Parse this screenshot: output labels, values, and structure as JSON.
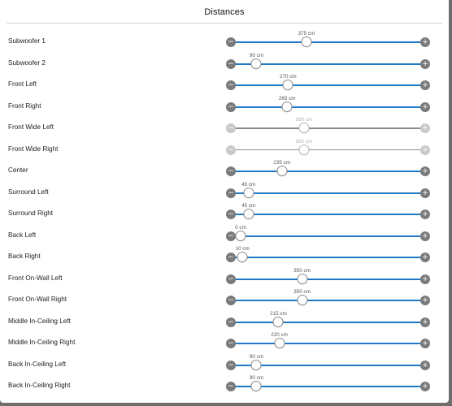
{
  "dialog": {
    "title": "Distances"
  },
  "slider": {
    "min_cm": 0,
    "max_cm": 1000,
    "minus_icon": "minus-icon",
    "plus_icon": "plus-icon",
    "accent_color": "#1f78c8"
  },
  "speakers": [
    {
      "label": "Subwoofer 1",
      "value_cm": 375,
      "value_text": "375 cm",
      "enabled": true
    },
    {
      "label": "Subwoofer 2",
      "value_cm": 90,
      "value_text": "90 cm",
      "enabled": true
    },
    {
      "label": "Front Left",
      "value_cm": 270,
      "value_text": "270 cm",
      "enabled": true
    },
    {
      "label": "Front Right",
      "value_cm": 265,
      "value_text": "265 cm",
      "enabled": true
    },
    {
      "label": "Front Wide Left",
      "value_cm": 360,
      "value_text": "360 cm",
      "enabled": false
    },
    {
      "label": "Front Wide Right",
      "value_cm": 360,
      "value_text": "360 cm",
      "enabled": false
    },
    {
      "label": "Center",
      "value_cm": 235,
      "value_text": "235 cm",
      "enabled": true
    },
    {
      "label": "Surround Left",
      "value_cm": 45,
      "value_text": "45 cm",
      "enabled": true
    },
    {
      "label": "Surround Right",
      "value_cm": 45,
      "value_text": "45 cm",
      "enabled": true
    },
    {
      "label": "Back Left",
      "value_cm": 0,
      "value_text": "0 cm",
      "enabled": true
    },
    {
      "label": "Back Right",
      "value_cm": 10,
      "value_text": "10 cm",
      "enabled": true
    },
    {
      "label": "Front On-Wall Left",
      "value_cm": 350,
      "value_text": "350 cm",
      "enabled": true
    },
    {
      "label": "Front On-Wall Right",
      "value_cm": 350,
      "value_text": "350 cm",
      "enabled": true
    },
    {
      "label": "Middle In-Ceiling Left",
      "value_cm": 215,
      "value_text": "215 cm",
      "enabled": true
    },
    {
      "label": "Middle In-Ceiling Right",
      "value_cm": 220,
      "value_text": "220 cm",
      "enabled": true
    },
    {
      "label": "Back In-Ceiling Left",
      "value_cm": 90,
      "value_text": "90 cm",
      "enabled": true
    },
    {
      "label": "Back In-Ceiling Right",
      "value_cm": 90,
      "value_text": "90 cm",
      "enabled": true
    }
  ]
}
